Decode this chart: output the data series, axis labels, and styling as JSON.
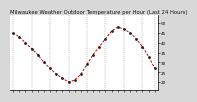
{
  "title": "Milwaukee Weather Outdoor Temperature per Hour (Last 24 Hours)",
  "hours": [
    0,
    1,
    2,
    3,
    4,
    5,
    6,
    7,
    8,
    9,
    10,
    11,
    12,
    13,
    14,
    15,
    16,
    17,
    18,
    19,
    20,
    21,
    22,
    23
  ],
  "temps": [
    45,
    43,
    40,
    37,
    34,
    30,
    27,
    24,
    22,
    20,
    21,
    24,
    29,
    34,
    38,
    42,
    46,
    48,
    47,
    45,
    42,
    38,
    33,
    27
  ],
  "line_color": "#cc0000",
  "marker_color": "#222222",
  "bg_color": "#d8d8d8",
  "plot_bg": "#ffffff",
  "grid_color": "#888888",
  "title_fontsize": 3.8,
  "tick_fontsize": 3.0,
  "ylim": [
    16,
    54
  ],
  "yticks": [
    20,
    25,
    30,
    35,
    40,
    45,
    50
  ],
  "xtick_positions": [
    0,
    1,
    2,
    3,
    4,
    5,
    6,
    7,
    8,
    9,
    10,
    11,
    12,
    13,
    14,
    15,
    16,
    17,
    18,
    19,
    20,
    21,
    22,
    23
  ],
  "vgrid_positions": [
    0,
    3,
    6,
    9,
    12,
    15,
    18,
    21,
    23
  ]
}
